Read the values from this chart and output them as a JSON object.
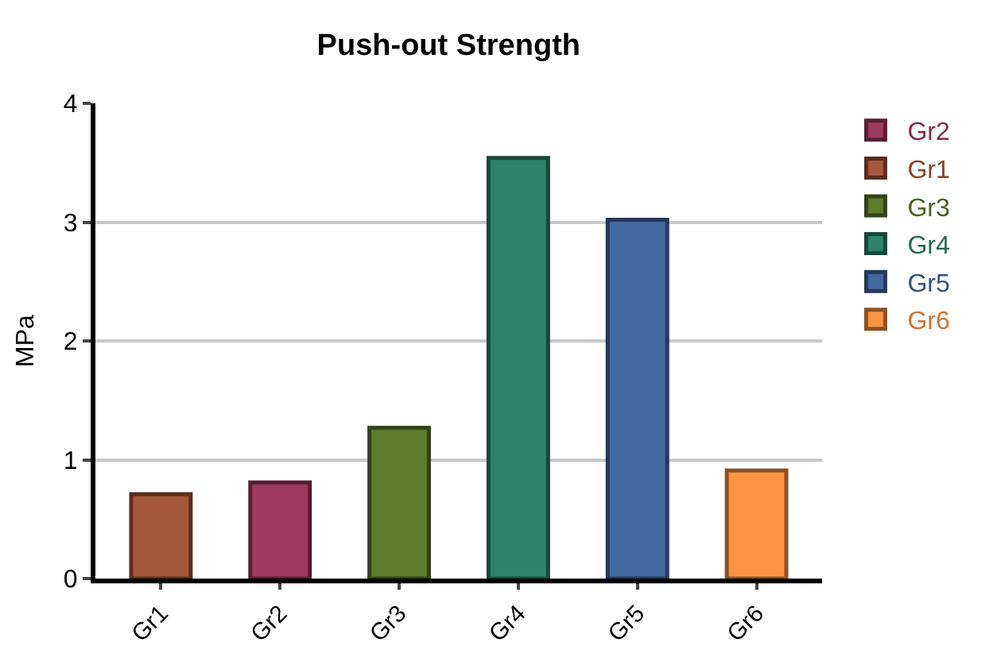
{
  "chart_data": {
    "type": "bar",
    "title": "Push-out Strength",
    "ylabel": "MPa",
    "categories": [
      "Gr1",
      "Gr2",
      "Gr3",
      "Gr4",
      "Gr5",
      "Gr6"
    ],
    "series": [
      {
        "name": "Gr2",
        "color": "#9e3a5e",
        "values": [
          null,
          0.81,
          null,
          null,
          null,
          null
        ]
      },
      {
        "name": "Gr1",
        "color": "#a5573a",
        "values": [
          0.71,
          null,
          null,
          null,
          null,
          null
        ]
      },
      {
        "name": "Gr3",
        "color": "#5e7a2c",
        "values": [
          null,
          null,
          1.27,
          null,
          null,
          null
        ]
      },
      {
        "name": "Gr4",
        "color": "#2e846a",
        "values": [
          null,
          null,
          null,
          3.54,
          null,
          null
        ]
      },
      {
        "name": "Gr5",
        "color": "#4468a0",
        "values": [
          null,
          null,
          null,
          null,
          3.02,
          null
        ]
      },
      {
        "name": "Gr6",
        "color": "#fd9442",
        "values": [
          null,
          null,
          null,
          null,
          null,
          0.91
        ]
      }
    ],
    "ylim": [
      0,
      4
    ],
    "yticks": [
      0,
      1,
      2,
      3,
      4
    ],
    "grid": "y",
    "legend": "right"
  }
}
